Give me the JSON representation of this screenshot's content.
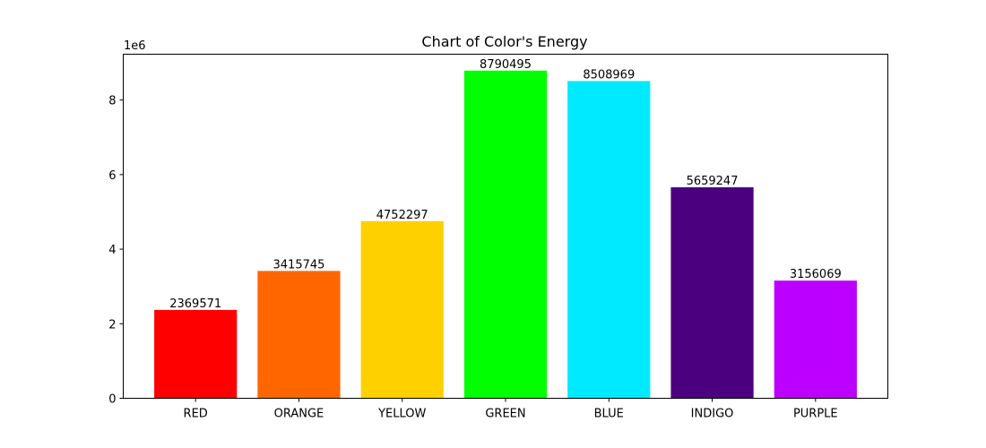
{
  "chart_data": {
    "type": "bar",
    "title": "Chart of Color's Energy",
    "xlabel": "",
    "ylabel": "",
    "offset_label": "1e6",
    "categories": [
      "RED",
      "ORANGE",
      "YELLOW",
      "GREEN",
      "BLUE",
      "INDIGO",
      "PURPLE"
    ],
    "values": [
      2369571,
      3415745,
      4752297,
      8790495,
      8508969,
      5659247,
      3156069
    ],
    "data_labels": [
      "2369571",
      "3415745",
      "4752297",
      "8790495",
      "8508969",
      "5659247",
      "3156069"
    ],
    "colors": [
      "#ff0000",
      "#ff6600",
      "#ffd000",
      "#00ff00",
      "#00eaff",
      "#4b0080",
      "#bb00ff"
    ],
    "ylim": [
      0,
      9229520
    ],
    "yticks": [
      0,
      2000000,
      4000000,
      6000000,
      8000000
    ],
    "ytick_labels": [
      "0",
      "2",
      "4",
      "6",
      "8"
    ],
    "grid": false,
    "legend": "none"
  }
}
